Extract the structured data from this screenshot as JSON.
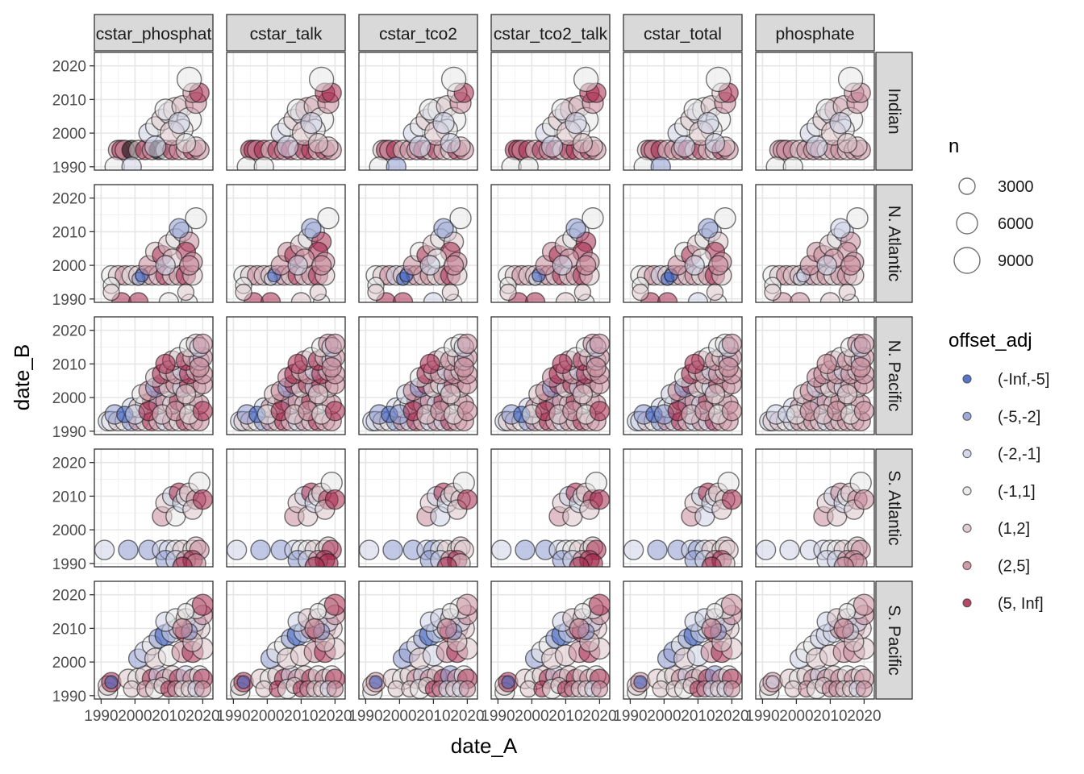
{
  "chart_data": {
    "type": "scatter",
    "subtype": "faceted bubble scatter",
    "xlabel": "date_A",
    "ylabel": "date_B",
    "xlim": [
      1988,
      2023
    ],
    "ylim": [
      1989,
      2024
    ],
    "x_ticks": [
      1990,
      2000,
      2010,
      2020
    ],
    "y_ticks": [
      1990,
      2000,
      2010,
      2020
    ],
    "x_tick_labels": [
      "1990",
      "2000",
      "2010",
      "2020"
    ],
    "y_tick_labels": [
      "1990",
      "2000",
      "2010",
      "2020"
    ],
    "grid": true,
    "col_facets": [
      "cstar_phosphate",
      "cstar_talk",
      "cstar_tco2",
      "cstar_tco2_talk",
      "cstar_total",
      "phosphate"
    ],
    "col_facet_labels": [
      "cstar_phosphat",
      "cstar_talk",
      "cstar_tco2",
      "cstar_tco2_talk",
      "cstar_total",
      "phosphate"
    ],
    "row_facets": [
      "Indian",
      "N. Atlantic",
      "N. Pacific",
      "S. Atlantic",
      "S. Pacific"
    ],
    "legend_position": "right",
    "size_legend": {
      "title": "n",
      "values": [
        3000,
        6000,
        9000
      ],
      "labels": [
        "3000",
        "6000",
        "9000"
      ]
    },
    "color_legend": {
      "title": "offset_adj",
      "categories": [
        "(-Inf,-5]",
        "(-5,-2]",
        "(-2,-1]",
        "(-1,1]",
        "(1,2]",
        "(2,5]",
        "(5, Inf]"
      ],
      "colors": [
        "#3b5fbf",
        "#8e9bcf",
        "#cdd1e6",
        "#e8e8e8",
        "#dcc4ca",
        "#c98a9b",
        "#a8294e"
      ]
    },
    "point_style": {
      "fill_alpha": 0.55,
      "stroke": "#1a1a1a",
      "stroke_alpha": 0.6
    },
    "points": {
      "Indian": [
        [
          1995,
          1995,
          5,
          3
        ],
        [
          1996,
          1995,
          6,
          3
        ],
        [
          1997,
          1995,
          5,
          3
        ],
        [
          1999,
          1995,
          7,
          3
        ],
        [
          2001,
          1995,
          4,
          3
        ],
        [
          2003,
          1995,
          6,
          3
        ],
        [
          2005,
          1995,
          5,
          3
        ],
        [
          2007,
          1995,
          7,
          3
        ],
        [
          2009,
          1995,
          3,
          3
        ],
        [
          2011,
          1995,
          6,
          3
        ],
        [
          2013,
          1995,
          5,
          3
        ],
        [
          2015,
          1995,
          4,
          3
        ],
        [
          2017,
          1995,
          6,
          3
        ],
        [
          2019,
          1995,
          5,
          3
        ],
        [
          1994,
          1990,
          3,
          3
        ],
        [
          1999,
          1990,
          2,
          3
        ],
        [
          2004,
          2000,
          2,
          3
        ],
        [
          2006,
          2002,
          3,
          3
        ],
        [
          2008,
          2004,
          4,
          4
        ],
        [
          2010,
          2006,
          2,
          4
        ],
        [
          2012,
          2007,
          4,
          5
        ],
        [
          2009,
          2007,
          3,
          4
        ],
        [
          2014,
          2008,
          4,
          4
        ],
        [
          2016,
          2004,
          3,
          5
        ],
        [
          2018,
          2009,
          5,
          4
        ],
        [
          2017,
          2012,
          5,
          3
        ],
        [
          2019,
          2012,
          6,
          3
        ],
        [
          2014,
          2001,
          3,
          4
        ],
        [
          2011,
          2000,
          4,
          5
        ],
        [
          2018,
          1996,
          4,
          3
        ],
        [
          2015,
          1997,
          3,
          3
        ],
        [
          2013,
          2003,
          2,
          4
        ],
        [
          2016,
          2016,
          3,
          5
        ],
        [
          2006,
          1996,
          2,
          4
        ]
      ],
      "N. Atlantic": [
        [
          1993,
          1997,
          3,
          3
        ],
        [
          1995,
          1997,
          4,
          3
        ],
        [
          1997,
          1997,
          5,
          3
        ],
        [
          1999,
          1997,
          3,
          3
        ],
        [
          2001,
          1997,
          4,
          3
        ],
        [
          2003,
          1997,
          2,
          3
        ],
        [
          2005,
          1997,
          5,
          3
        ],
        [
          2007,
          1997,
          4,
          3
        ],
        [
          2009,
          1997,
          6,
          3
        ],
        [
          2011,
          1997,
          3,
          3
        ],
        [
          2013,
          1997,
          5,
          3
        ],
        [
          2015,
          1997,
          6,
          3
        ],
        [
          2017,
          1997,
          4,
          3
        ],
        [
          2001,
          1996,
          1,
          1
        ],
        [
          2002,
          1997,
          0,
          1
        ],
        [
          1993,
          1994,
          3,
          2
        ],
        [
          1996,
          1989,
          6,
          3
        ],
        [
          2001,
          1989,
          6,
          3
        ],
        [
          2010,
          1989,
          3,
          3
        ],
        [
          2016,
          1989,
          3,
          2
        ],
        [
          1993,
          1992,
          4,
          2
        ],
        [
          2015,
          1992,
          4,
          2
        ],
        [
          2004,
          2000,
          5,
          3
        ],
        [
          2006,
          2004,
          4,
          3
        ],
        [
          2008,
          2003,
          6,
          3
        ],
        [
          2010,
          2006,
          4,
          4
        ],
        [
          2012,
          2008,
          3,
          3
        ],
        [
          2014,
          2010,
          2,
          3
        ],
        [
          2016,
          2007,
          5,
          3
        ],
        [
          2018,
          2014,
          3,
          4
        ],
        [
          2015,
          2004,
          6,
          3
        ],
        [
          2017,
          2001,
          5,
          3
        ],
        [
          2013,
          2011,
          1,
          3
        ],
        [
          2011,
          2002,
          4,
          3
        ],
        [
          2009,
          2000,
          2,
          3
        ],
        [
          2016,
          2000,
          5,
          3
        ]
      ],
      "N. Pacific": [
        [
          1992,
          1993,
          2,
          3
        ],
        [
          1993,
          1993,
          3,
          3
        ],
        [
          1995,
          1993,
          4,
          3
        ],
        [
          1997,
          1993,
          3,
          3
        ],
        [
          1999,
          1993,
          1,
          3
        ],
        [
          2001,
          1993,
          5,
          3
        ],
        [
          2003,
          1993,
          3,
          3
        ],
        [
          2005,
          1993,
          6,
          3
        ],
        [
          2007,
          1993,
          4,
          3
        ],
        [
          2009,
          1993,
          2,
          3
        ],
        [
          2011,
          1993,
          5,
          3
        ],
        [
          2013,
          1993,
          3,
          3
        ],
        [
          2015,
          1993,
          6,
          3
        ],
        [
          2017,
          1993,
          4,
          3
        ],
        [
          2019,
          1993,
          5,
          3
        ],
        [
          1999,
          1997,
          2,
          3
        ],
        [
          2001,
          1997,
          4,
          3
        ],
        [
          2003,
          1998,
          3,
          3
        ],
        [
          2005,
          1999,
          6,
          3
        ],
        [
          2007,
          1998,
          2,
          3
        ],
        [
          2009,
          1999,
          5,
          3
        ],
        [
          2011,
          1998,
          3,
          3
        ],
        [
          2013,
          1999,
          6,
          3
        ],
        [
          2015,
          1998,
          4,
          3
        ],
        [
          2017,
          1999,
          3,
          3
        ],
        [
          2019,
          1998,
          5,
          3
        ],
        [
          2002,
          2001,
          3,
          3
        ],
        [
          2004,
          2002,
          5,
          3
        ],
        [
          2006,
          2003,
          1,
          3
        ],
        [
          2008,
          2004,
          6,
          3
        ],
        [
          2010,
          2003,
          3,
          3
        ],
        [
          2012,
          2004,
          5,
          3
        ],
        [
          2014,
          2003,
          2,
          3
        ],
        [
          2016,
          2004,
          6,
          3
        ],
        [
          2018,
          2003,
          4,
          3
        ],
        [
          2020,
          2004,
          5,
          3
        ],
        [
          2006,
          2006,
          4,
          3
        ],
        [
          2008,
          2007,
          6,
          3
        ],
        [
          2010,
          2008,
          3,
          3
        ],
        [
          2012,
          2007,
          5,
          3
        ],
        [
          2014,
          2008,
          2,
          3
        ],
        [
          2016,
          2007,
          6,
          3
        ],
        [
          2018,
          2008,
          4,
          3
        ],
        [
          2020,
          2007,
          5,
          3
        ],
        [
          2011,
          2011,
          5,
          3
        ],
        [
          2013,
          2012,
          3,
          3
        ],
        [
          2015,
          2011,
          6,
          3
        ],
        [
          2017,
          2012,
          4,
          3
        ],
        [
          2019,
          2011,
          2,
          3
        ],
        [
          2020,
          2012,
          5,
          3
        ],
        [
          2016,
          2015,
          3,
          3
        ],
        [
          2018,
          2016,
          4,
          3
        ],
        [
          2019,
          2015,
          2,
          3
        ],
        [
          2020,
          2016,
          5,
          3
        ],
        [
          1994,
          1995,
          1,
          3
        ],
        [
          1997,
          1995,
          0,
          2
        ],
        [
          2000,
          1995,
          2,
          3
        ],
        [
          2004,
          1996,
          6,
          3
        ],
        [
          2008,
          1995,
          4,
          3
        ],
        [
          2012,
          1996,
          5,
          3
        ],
        [
          2016,
          1995,
          3,
          3
        ],
        [
          2020,
          1996,
          6,
          3
        ],
        [
          2015,
          2001,
          4,
          3
        ],
        [
          2019,
          2009,
          5,
          3
        ],
        [
          2009,
          2010,
          6,
          3
        ]
      ],
      "S. Atlantic": [
        [
          1991,
          1994,
          2,
          3
        ],
        [
          1998,
          1994,
          1,
          3
        ],
        [
          2004,
          1994,
          1,
          3
        ],
        [
          2008,
          1994,
          2,
          3
        ],
        [
          2010,
          1994,
          2,
          3
        ],
        [
          2012,
          1994,
          3,
          3
        ],
        [
          2014,
          1994,
          4,
          3
        ],
        [
          2017,
          1994,
          3,
          3
        ],
        [
          2018,
          1995,
          4,
          3
        ],
        [
          2019,
          1994,
          5,
          3
        ],
        [
          2009,
          1991,
          1,
          3
        ],
        [
          2012,
          1991,
          2,
          3
        ],
        [
          2015,
          1991,
          5,
          3
        ],
        [
          2017,
          1991,
          6,
          3
        ],
        [
          2018,
          1990,
          5,
          3
        ],
        [
          2014,
          1989,
          6,
          3
        ],
        [
          2008,
          2004,
          5,
          3
        ],
        [
          2009,
          2008,
          4,
          3
        ],
        [
          2011,
          2010,
          2,
          3
        ],
        [
          2012,
          2004,
          3,
          3
        ],
        [
          2013,
          2011,
          6,
          3
        ],
        [
          2014,
          2008,
          2,
          3
        ],
        [
          2015,
          2010,
          3,
          3
        ],
        [
          2016,
          2011,
          4,
          3
        ],
        [
          2018,
          2009,
          5,
          3
        ],
        [
          2019,
          2014,
          3,
          4
        ],
        [
          2017,
          2006,
          4,
          3
        ],
        [
          2020,
          2009,
          6,
          3
        ]
      ],
      "S. Pacific": [
        [
          1992,
          1991,
          3,
          3
        ],
        [
          1992,
          1993,
          4,
          3
        ],
        [
          1993,
          1994,
          6,
          3
        ],
        [
          1993,
          1994,
          0,
          1
        ],
        [
          1998,
          1995,
          4,
          3
        ],
        [
          2001,
          1995,
          3,
          4
        ],
        [
          2003,
          1996,
          4,
          3
        ],
        [
          2005,
          1995,
          6,
          3
        ],
        [
          2007,
          1996,
          2,
          3
        ],
        [
          2009,
          1995,
          5,
          3
        ],
        [
          2011,
          1996,
          4,
          3
        ],
        [
          2013,
          1995,
          6,
          3
        ],
        [
          2015,
          1996,
          2,
          3
        ],
        [
          2017,
          1995,
          5,
          3
        ],
        [
          2019,
          1996,
          3,
          3
        ],
        [
          2020,
          1995,
          6,
          3
        ],
        [
          1999,
          1992,
          4,
          2
        ],
        [
          2003,
          1992,
          5,
          2
        ],
        [
          2006,
          1992,
          3,
          3
        ],
        [
          2008,
          1993,
          4,
          2
        ],
        [
          2010,
          1992,
          6,
          2
        ],
        [
          2012,
          1992,
          5,
          2
        ],
        [
          2014,
          1992,
          3,
          2
        ],
        [
          2016,
          1992,
          4,
          2
        ],
        [
          2018,
          1992,
          2,
          2
        ],
        [
          2020,
          1992,
          5,
          2
        ],
        [
          2001,
          2001,
          1,
          3
        ],
        [
          2003,
          2003,
          2,
          4
        ],
        [
          2005,
          2005,
          3,
          3
        ],
        [
          2007,
          2007,
          1,
          3
        ],
        [
          2009,
          2008,
          0,
          4
        ],
        [
          2011,
          2009,
          2,
          4
        ],
        [
          2013,
          2010,
          4,
          4
        ],
        [
          2015,
          2009,
          6,
          4
        ],
        [
          2017,
          2010,
          5,
          4
        ],
        [
          2019,
          2010,
          4,
          4
        ],
        [
          2006,
          2001,
          4,
          4
        ],
        [
          2010,
          2002,
          3,
          4
        ],
        [
          2014,
          2003,
          5,
          4
        ],
        [
          2017,
          2003,
          6,
          4
        ],
        [
          2020,
          2004,
          4,
          4
        ],
        [
          2009,
          2012,
          2,
          3
        ],
        [
          2012,
          2013,
          3,
          3
        ],
        [
          2015,
          2013,
          4,
          3
        ],
        [
          2018,
          2012,
          2,
          3
        ],
        [
          2020,
          2014,
          5,
          3
        ],
        [
          2018,
          2016,
          3,
          4
        ],
        [
          2020,
          2017,
          6,
          4
        ],
        [
          2015,
          2015,
          3,
          2
        ],
        [
          2017,
          2006,
          4,
          3
        ],
        [
          2016,
          2009,
          1,
          2
        ],
        [
          2014,
          2010,
          5,
          3
        ]
      ]
    }
  }
}
